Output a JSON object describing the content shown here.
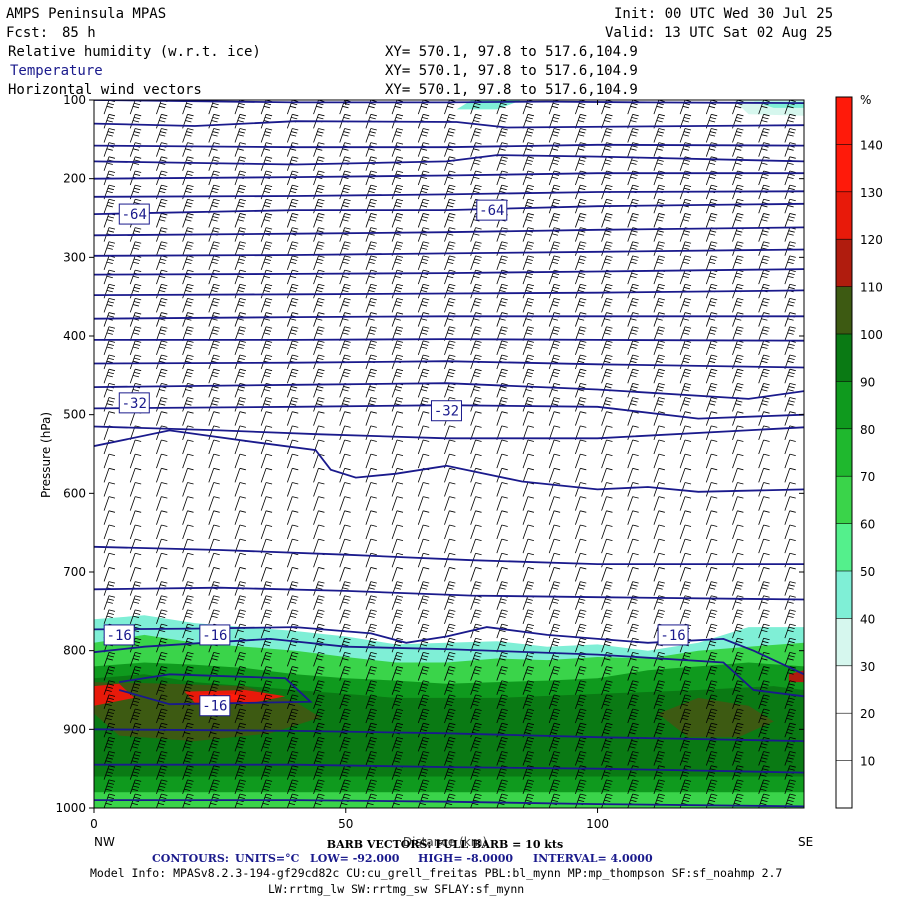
{
  "header": {
    "model": "AMPS Peninsula MPAS",
    "init": "Init: 00 UTC Wed 30 Jul 25",
    "fcst_label": "Fcst:",
    "fcst_value": "85 h",
    "valid": "Valid: 13 UTC Sat 02 Aug 25",
    "fields": [
      {
        "label": "Relative humidity (w.r.t. ice)",
        "xy": "XY= 570.1, 97.8 to 517.6,104.9"
      },
      {
        "label": "Temperature",
        "xy": "XY= 570.1, 97.8 to 517.6,104.9"
      },
      {
        "label": "Horizontal wind vectors",
        "xy": "XY= 570.1, 97.8 to 517.6,104.9"
      }
    ]
  },
  "colors": {
    "contour": "#1a1a8c",
    "rh_bands": [
      "#ffffff",
      "#ffffff",
      "#ffffff",
      "#d6f7ee",
      "#7fefd6",
      "#54f08c",
      "#3ad44a",
      "#1fb82e",
      "#0f9a1e",
      "#0a7a14",
      "#3d5a12",
      "#b01c0e",
      "#e81a0a",
      "#ff1a0a"
    ]
  },
  "chart_data": {
    "type": "cross-section",
    "x_axis": {
      "label": "Distance (km)",
      "range": [
        0,
        141
      ],
      "ticks": [
        0,
        50,
        100
      ],
      "left_end": "NW",
      "right_end": "SE"
    },
    "y_axis": {
      "label": "Pressure (hPa)",
      "range": [
        1000,
        100
      ],
      "ticks": [
        100,
        200,
        300,
        400,
        500,
        600,
        700,
        800,
        900,
        1000
      ]
    },
    "colorbar": {
      "unit": "%",
      "levels": [
        10,
        20,
        30,
        40,
        50,
        60,
        70,
        80,
        90,
        100,
        110,
        120,
        130,
        140
      ]
    },
    "temperature_contours": {
      "units": "°C",
      "low": "-92.000",
      "high": "-8.0000",
      "interval": "4.0000",
      "labels": [
        {
          "text": "-64",
          "x": 8,
          "p": 245
        },
        {
          "text": "-64",
          "x": 79,
          "p": 240
        },
        {
          "text": "-32",
          "x": 8,
          "p": 485
        },
        {
          "text": "-32",
          "x": 70,
          "p": 495
        },
        {
          "text": "-16",
          "x": 5,
          "p": 780
        },
        {
          "text": "-16",
          "x": 24,
          "p": 780
        },
        {
          "text": "-16",
          "x": 115,
          "p": 780
        },
        {
          "text": "-16",
          "x": 24,
          "p": 870
        }
      ],
      "lines": [
        [
          [
            0,
            100
          ],
          [
            40,
            103
          ],
          [
            70,
            103
          ],
          [
            90,
            102
          ],
          [
            110,
            103
          ],
          [
            141,
            104
          ]
        ],
        [
          [
            0,
            130
          ],
          [
            20,
            133
          ],
          [
            40,
            127
          ],
          [
            72,
            128
          ],
          [
            82,
            135
          ],
          [
            141,
            132
          ]
        ],
        [
          [
            0,
            158
          ],
          [
            40,
            160
          ],
          [
            70,
            160
          ],
          [
            100,
            157
          ],
          [
            141,
            158
          ]
        ],
        [
          [
            0,
            178
          ],
          [
            40,
            182
          ],
          [
            70,
            178
          ],
          [
            80,
            170
          ],
          [
            100,
            172
          ],
          [
            141,
            178
          ]
        ],
        [
          [
            0,
            200
          ],
          [
            40,
            198
          ],
          [
            70,
            196
          ],
          [
            100,
            193
          ],
          [
            141,
            193
          ]
        ],
        [
          [
            0,
            223
          ],
          [
            40,
            222
          ],
          [
            70,
            220
          ],
          [
            100,
            217
          ],
          [
            141,
            216
          ]
        ],
        [
          [
            0,
            245
          ],
          [
            40,
            240
          ],
          [
            70,
            240
          ],
          [
            100,
            235
          ],
          [
            141,
            232
          ]
        ],
        [
          [
            0,
            272
          ],
          [
            40,
            270
          ],
          [
            70,
            268
          ],
          [
            100,
            265
          ],
          [
            141,
            262
          ]
        ],
        [
          [
            0,
            298
          ],
          [
            40,
            297
          ],
          [
            70,
            295
          ],
          [
            100,
            293
          ],
          [
            141,
            290
          ]
        ],
        [
          [
            0,
            322
          ],
          [
            40,
            321
          ],
          [
            70,
            320
          ],
          [
            100,
            318
          ],
          [
            141,
            315
          ]
        ],
        [
          [
            0,
            348
          ],
          [
            40,
            347
          ],
          [
            70,
            346
          ],
          [
            100,
            345
          ],
          [
            141,
            342
          ]
        ],
        [
          [
            0,
            378
          ],
          [
            40,
            376
          ],
          [
            70,
            375
          ],
          [
            100,
            375
          ],
          [
            141,
            375
          ]
        ],
        [
          [
            0,
            405
          ],
          [
            40,
            405
          ],
          [
            70,
            404
          ],
          [
            100,
            405
          ],
          [
            141,
            406
          ]
        ],
        [
          [
            0,
            435
          ],
          [
            40,
            434
          ],
          [
            70,
            432
          ],
          [
            100,
            436
          ],
          [
            141,
            440
          ]
        ],
        [
          [
            0,
            465
          ],
          [
            40,
            462
          ],
          [
            70,
            460
          ],
          [
            100,
            468
          ],
          [
            130,
            480
          ],
          [
            141,
            470
          ]
        ],
        [
          [
            0,
            492
          ],
          [
            40,
            490
          ],
          [
            70,
            488
          ],
          [
            100,
            490
          ],
          [
            120,
            505
          ],
          [
            141,
            500
          ]
        ],
        [
          [
            0,
            515
          ],
          [
            25,
            520
          ],
          [
            45,
            525
          ],
          [
            70,
            530
          ],
          [
            100,
            530
          ],
          [
            141,
            516
          ]
        ],
        [
          [
            0,
            540
          ],
          [
            15,
            520
          ],
          [
            32,
            535
          ],
          [
            44,
            545
          ],
          [
            47,
            570
          ],
          [
            52,
            580
          ],
          [
            60,
            575
          ],
          [
            70,
            565
          ],
          [
            85,
            585
          ],
          [
            100,
            595
          ],
          [
            110,
            592
          ],
          [
            120,
            598
          ],
          [
            141,
            595
          ]
        ],
        [
          [
            0,
            668
          ],
          [
            25,
            672
          ],
          [
            50,
            678
          ],
          [
            75,
            685
          ],
          [
            100,
            690
          ],
          [
            141,
            690
          ]
        ],
        [
          [
            0,
            722
          ],
          [
            25,
            720
          ],
          [
            50,
            724
          ],
          [
            75,
            730
          ],
          [
            100,
            732
          ],
          [
            141,
            735
          ]
        ],
        [
          [
            0,
            773
          ],
          [
            20,
            772
          ],
          [
            40,
            770
          ],
          [
            55,
            778
          ],
          [
            62,
            790
          ],
          [
            70,
            782
          ],
          [
            78,
            770
          ],
          [
            90,
            780
          ],
          [
            110,
            790
          ],
          [
            125,
            785
          ],
          [
            131,
            800
          ],
          [
            137,
            818
          ],
          [
            141,
            830
          ]
        ],
        [
          [
            0,
            802
          ],
          [
            10,
            795
          ],
          [
            22,
            790
          ],
          [
            35,
            785
          ],
          [
            50,
            795
          ],
          [
            70,
            798
          ],
          [
            100,
            805
          ],
          [
            125,
            815
          ],
          [
            131,
            850
          ],
          [
            141,
            858
          ]
        ],
        [
          [
            5,
            840
          ],
          [
            15,
            830
          ],
          [
            38,
            835
          ],
          [
            43,
            865
          ],
          [
            15,
            868
          ],
          [
            5,
            850
          ]
        ],
        [
          [
            0,
            900
          ],
          [
            40,
            902
          ],
          [
            70,
            905
          ],
          [
            100,
            910
          ],
          [
            141,
            915
          ]
        ],
        [
          [
            0,
            945
          ],
          [
            40,
            945
          ],
          [
            70,
            948
          ],
          [
            100,
            950
          ],
          [
            141,
            955
          ]
        ],
        [
          [
            0,
            990
          ],
          [
            40,
            990
          ],
          [
            70,
            992
          ],
          [
            100,
            995
          ],
          [
            141,
            998
          ]
        ]
      ]
    },
    "rh_shading": [
      {
        "level": 40,
        "poly": [
          [
            0,
            760
          ],
          [
            10,
            755
          ],
          [
            20,
            765
          ],
          [
            30,
            770
          ],
          [
            40,
            775
          ],
          [
            50,
            782
          ],
          [
            60,
            792
          ],
          [
            70,
            790
          ],
          [
            80,
            788
          ],
          [
            90,
            795
          ],
          [
            100,
            792
          ],
          [
            110,
            800
          ],
          [
            120,
            790
          ],
          [
            130,
            770
          ],
          [
            141,
            770
          ],
          [
            141,
            1000
          ],
          [
            0,
            1000
          ]
        ]
      },
      {
        "level": 60,
        "poly": [
          [
            0,
            790
          ],
          [
            10,
            780
          ],
          [
            20,
            790
          ],
          [
            30,
            795
          ],
          [
            40,
            800
          ],
          [
            50,
            808
          ],
          [
            60,
            815
          ],
          [
            70,
            815
          ],
          [
            80,
            810
          ],
          [
            90,
            812
          ],
          [
            100,
            808
          ],
          [
            110,
            810
          ],
          [
            120,
            800
          ],
          [
            130,
            795
          ],
          [
            141,
            790
          ],
          [
            141,
            1000
          ],
          [
            0,
            1000
          ]
        ]
      },
      {
        "level": 80,
        "poly": [
          [
            0,
            820
          ],
          [
            10,
            815
          ],
          [
            20,
            818
          ],
          [
            30,
            822
          ],
          [
            40,
            830
          ],
          [
            50,
            835
          ],
          [
            60,
            838
          ],
          [
            70,
            842
          ],
          [
            80,
            840
          ],
          [
            90,
            838
          ],
          [
            100,
            835
          ],
          [
            110,
            825
          ],
          [
            120,
            820
          ],
          [
            130,
            815
          ],
          [
            141,
            820
          ],
          [
            141,
            980
          ],
          [
            0,
            980
          ]
        ]
      },
      {
        "level": 90,
        "poly": [
          [
            0,
            835
          ],
          [
            10,
            830
          ],
          [
            20,
            840
          ],
          [
            40,
            850
          ],
          [
            50,
            855
          ],
          [
            60,
            860
          ],
          [
            80,
            860
          ],
          [
            100,
            855
          ],
          [
            120,
            850
          ],
          [
            135,
            845
          ],
          [
            141,
            850
          ],
          [
            141,
            960
          ],
          [
            0,
            960
          ]
        ]
      },
      {
        "level": 100,
        "poly": [
          [
            0,
            840
          ],
          [
            15,
            842
          ],
          [
            30,
            845
          ],
          [
            40,
            865
          ],
          [
            45,
            885
          ],
          [
            35,
            905
          ],
          [
            20,
            915
          ],
          [
            5,
            908
          ],
          [
            0,
            880
          ]
        ]
      },
      {
        "level": 100,
        "poly": [
          [
            112,
            880
          ],
          [
            120,
            860
          ],
          [
            130,
            870
          ],
          [
            135,
            890
          ],
          [
            128,
            910
          ],
          [
            118,
            910
          ]
        ]
      },
      {
        "level": 120,
        "poly": [
          [
            0,
            845
          ],
          [
            5,
            842
          ],
          [
            8,
            860
          ],
          [
            0,
            870
          ]
        ]
      },
      {
        "level": 120,
        "poly": [
          [
            18,
            852
          ],
          [
            30,
            850
          ],
          [
            38,
            858
          ],
          [
            30,
            868
          ],
          [
            20,
            866
          ]
        ]
      },
      {
        "level": 130,
        "poly": [
          [
            21,
            855
          ],
          [
            28,
            855
          ],
          [
            30,
            862
          ],
          [
            22,
            863
          ]
        ]
      },
      {
        "level": 110,
        "poly": [
          [
            138,
            830
          ],
          [
            141,
            825
          ],
          [
            141,
            840
          ],
          [
            138,
            840
          ]
        ]
      },
      {
        "level": 40,
        "poly": [
          [
            75,
            100
          ],
          [
            85,
            100
          ],
          [
            80,
            112
          ],
          [
            72,
            112
          ]
        ]
      },
      {
        "level": 30,
        "poly": [
          [
            127,
            100
          ],
          [
            141,
            100
          ],
          [
            141,
            120
          ],
          [
            130,
            118
          ]
        ]
      },
      {
        "level": 40,
        "poly": [
          [
            131,
            102
          ],
          [
            141,
            102
          ],
          [
            141,
            110
          ],
          [
            135,
            110
          ]
        ]
      }
    ],
    "barbs": {
      "full_barb": "10 kts"
    }
  },
  "footer": {
    "barb_caption": "BARB VECTORS: FULL BARB = 10 kts",
    "contours_label": "CONTOURS:",
    "units": "UNITS=°C",
    "low": "LOW= -92.000",
    "high": "HIGH= -8.0000",
    "interval": "INTERVAL= 4.0000",
    "model_info": "Model Info: MPASv8.2.3-194-gf29cd82c CU:cu_grell_freitas PBL:bl_mynn MP:mp_thompson SF:sf_noahmp 2.7",
    "model_info2": "LW:rrtmg_lw SW:rrtmg_sw SFLAY:sf_mynn"
  }
}
